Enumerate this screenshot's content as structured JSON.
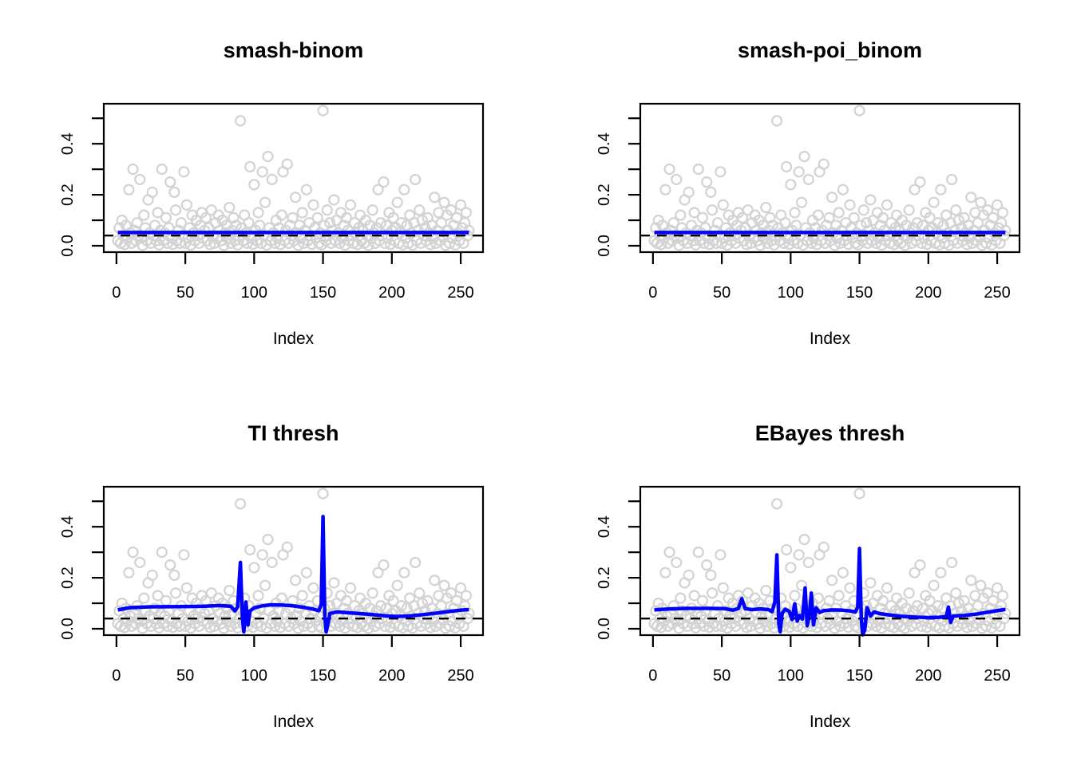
{
  "colors": {
    "scatter": "#D3D3D3",
    "fit_line": "#0000FF",
    "dashed_line": "#000000",
    "axis": "#000000",
    "background": "#FFFFFF"
  },
  "chart_data": {
    "type": "scatter",
    "layout": "2x2 panels, shared scatter data, per-panel fitted line",
    "grid": "off",
    "axes": {
      "xlabel": "Index",
      "x_ticks": [
        0,
        50,
        100,
        150,
        200,
        250
      ],
      "y_ticks": [
        0,
        0.1,
        0.2,
        0.3,
        0.4,
        0.5
      ],
      "y_labeled_ticks": [
        0,
        0.2,
        0.4
      ],
      "xlim": [
        -9.2,
        266.2
      ],
      "ylim": [
        -0.025,
        0.557
      ]
    },
    "scatter_x_start": 1,
    "scatter_y": [
      0.02,
      0.07,
      0.01,
      0.1,
      0.04,
      0.005,
      0.08,
      0.03,
      0.22,
      0.05,
      0.01,
      0.3,
      0.06,
      0.02,
      0.09,
      0.04,
      0.26,
      0.03,
      0.002,
      0.12,
      0.07,
      0.02,
      0.18,
      0.05,
      0.01,
      0.21,
      0.04,
      0.08,
      0.02,
      0.13,
      0.004,
      0.06,
      0.3,
      0.02,
      0.05,
      0.11,
      0.01,
      0.07,
      0.25,
      0.03,
      0.006,
      0.21,
      0.14,
      0.02,
      0.06,
      0.01,
      0.09,
      0.04,
      0.29,
      0.01,
      0.16,
      0.03,
      0.07,
      0.003,
      0.12,
      0.05,
      0.02,
      0.1,
      0.04,
      0.01,
      0.08,
      0.13,
      0.03,
      0.06,
      0.11,
      0.02,
      0.07,
      0.005,
      0.14,
      0.04,
      0.01,
      0.09,
      0.03,
      0.12,
      0.06,
      0.02,
      0.1,
      0.002,
      0.05,
      0.08,
      0.03,
      0.15,
      0.01,
      0.06,
      0.11,
      0.02,
      0.08,
      0.004,
      0.04,
      0.49,
      0.07,
      0.02,
      0.12,
      0.05,
      0.01,
      0.09,
      0.31,
      0.03,
      0.006,
      0.24,
      0.06,
      0.02,
      0.13,
      0.08,
      0.01,
      0.29,
      0.04,
      0.17,
      0.003,
      0.35,
      0.07,
      0.02,
      0.26,
      0.05,
      0.01,
      0.1,
      0.03,
      0.07,
      0.005,
      0.12,
      0.29,
      0.02,
      0.06,
      0.32,
      0.01,
      0.08,
      0.04,
      0.11,
      0.02,
      0.19,
      0.05,
      0.002,
      0.08,
      0.03,
      0.13,
      0.01,
      0.06,
      0.22,
      0.02,
      0.09,
      0.04,
      0.006,
      0.16,
      0.07,
      0.03,
      0.11,
      0.01,
      0.05,
      0.004,
      0.53,
      0.08,
      0.02,
      0.14,
      0.04,
      0.09,
      0.01,
      0.06,
      0.18,
      0.02,
      0.1,
      0.05,
      0.01,
      0.13,
      0.03,
      0.08,
      0.003,
      0.11,
      0.06,
      0.02,
      0.16,
      0.04,
      0.01,
      0.09,
      0.05,
      0.005,
      0.07,
      0.12,
      0.02,
      0.06,
      0.01,
      0.1,
      0.04,
      0.002,
      0.08,
      0.03,
      0.14,
      0.05,
      0.01,
      0.07,
      0.22,
      0.02,
      0.09,
      0.04,
      0.25,
      0.01,
      0.08,
      0.03,
      0.13,
      0.006,
      0.06,
      0.11,
      0.02,
      0.07,
      0.17,
      0.01,
      0.05,
      0.09,
      0.004,
      0.22,
      0.03,
      0.08,
      0.01,
      0.12,
      0.05,
      0.003,
      0.09,
      0.26,
      0.02,
      0.06,
      0.14,
      0.01,
      0.1,
      0.04,
      0.07,
      0.02,
      0.11,
      0.05,
      0.005,
      0.08,
      0.03,
      0.19,
      0.01,
      0.06,
      0.13,
      0.02,
      0.09,
      0.04,
      0.17,
      0.002,
      0.12,
      0.06,
      0.01,
      0.14,
      0.03,
      0.08,
      0.004,
      0.11,
      0.05,
      0.02,
      0.16,
      0.07,
      0.01,
      0.09,
      0.13,
      0.04,
      0.06
    ],
    "panels": [
      {
        "title": "smash-binom",
        "xlabel": "Index",
        "dashed_hline": 0.04,
        "line": [
          [
            1,
            0.052
          ],
          [
            256,
            0.052
          ]
        ]
      },
      {
        "title": "smash-poi_binom",
        "xlabel": "Index",
        "dashed_hline": 0.04,
        "line": [
          [
            1,
            0.052
          ],
          [
            256,
            0.052
          ]
        ]
      },
      {
        "title": "TI thresh",
        "xlabel": "Index",
        "dashed_hline": 0.04,
        "line": [
          [
            1,
            0.074
          ],
          [
            10,
            0.083
          ],
          [
            25,
            0.086
          ],
          [
            45,
            0.087
          ],
          [
            62,
            0.088
          ],
          [
            75,
            0.091
          ],
          [
            83,
            0.088
          ],
          [
            86,
            0.07
          ],
          [
            88,
            0.085
          ],
          [
            90,
            0.26
          ],
          [
            91.5,
            0.04
          ],
          [
            92.5,
            -0.012
          ],
          [
            94,
            0.105
          ],
          [
            95.5,
            0.015
          ],
          [
            97,
            0.07
          ],
          [
            100,
            0.082
          ],
          [
            106,
            0.09
          ],
          [
            112,
            0.094
          ],
          [
            120,
            0.093
          ],
          [
            128,
            0.09
          ],
          [
            136,
            0.084
          ],
          [
            143,
            0.077
          ],
          [
            147,
            0.071
          ],
          [
            148.7,
            0.095
          ],
          [
            150,
            0.44
          ],
          [
            151.3,
            0.05
          ],
          [
            152.3,
            -0.012
          ],
          [
            153.6,
            0.02
          ],
          [
            155,
            0.06
          ],
          [
            160,
            0.066
          ],
          [
            168,
            0.063
          ],
          [
            176,
            0.06
          ],
          [
            185,
            0.056
          ],
          [
            195,
            0.051
          ],
          [
            203,
            0.048
          ],
          [
            212,
            0.05
          ],
          [
            222,
            0.055
          ],
          [
            232,
            0.061
          ],
          [
            242,
            0.068
          ],
          [
            250,
            0.073
          ],
          [
            256,
            0.075
          ]
        ]
      },
      {
        "title": "EBayes thresh",
        "xlabel": "Index",
        "dashed_hline": 0.04,
        "line": [
          [
            1,
            0.074
          ],
          [
            12,
            0.078
          ],
          [
            25,
            0.08
          ],
          [
            40,
            0.08
          ],
          [
            52,
            0.079
          ],
          [
            58,
            0.073
          ],
          [
            62,
            0.079
          ],
          [
            64.5,
            0.118
          ],
          [
            67,
            0.079
          ],
          [
            72,
            0.075
          ],
          [
            78,
            0.078
          ],
          [
            84,
            0.075
          ],
          [
            86.5,
            0.067
          ],
          [
            88.5,
            0.105
          ],
          [
            90,
            0.29
          ],
          [
            91.4,
            0.02
          ],
          [
            92.4,
            -0.012
          ],
          [
            93.8,
            0.06
          ],
          [
            96,
            0.077
          ],
          [
            99,
            0.068
          ],
          [
            101,
            0.036
          ],
          [
            103,
            0.098
          ],
          [
            104.8,
            0.03
          ],
          [
            106.5,
            0.052
          ],
          [
            108.5,
            0.038
          ],
          [
            110.5,
            0.16
          ],
          [
            112,
            0.012
          ],
          [
            113.5,
            0.05
          ],
          [
            115,
            0.14
          ],
          [
            116.6,
            0.015
          ],
          [
            118.5,
            0.082
          ],
          [
            121,
            0.064
          ],
          [
            124,
            0.071
          ],
          [
            130,
            0.074
          ],
          [
            137,
            0.073
          ],
          [
            143,
            0.07
          ],
          [
            147,
            0.066
          ],
          [
            148.7,
            0.085
          ],
          [
            150,
            0.315
          ],
          [
            151.3,
            0.04
          ],
          [
            152.3,
            -0.024
          ],
          [
            153.8,
            -0.005
          ],
          [
            155.5,
            0.083
          ],
          [
            158,
            0.05
          ],
          [
            160.5,
            0.066
          ],
          [
            165,
            0.059
          ],
          [
            172,
            0.054
          ],
          [
            180,
            0.049
          ],
          [
            190,
            0.046
          ],
          [
            200,
            0.044
          ],
          [
            208,
            0.045
          ],
          [
            213,
            0.048
          ],
          [
            214.6,
            0.085
          ],
          [
            216.2,
            0.025
          ],
          [
            218,
            0.05
          ],
          [
            226,
            0.052
          ],
          [
            234,
            0.057
          ],
          [
            243,
            0.065
          ],
          [
            251,
            0.072
          ],
          [
            256,
            0.076
          ]
        ]
      }
    ]
  }
}
